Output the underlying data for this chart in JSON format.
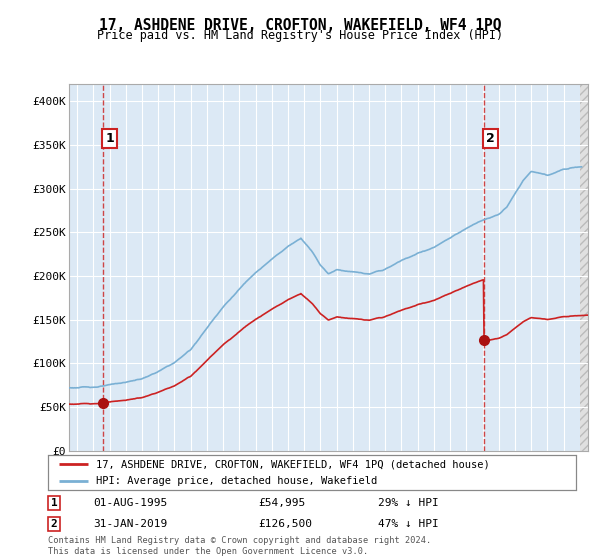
{
  "title": "17, ASHDENE DRIVE, CROFTON, WAKEFIELD, WF4 1PQ",
  "subtitle": "Price paid vs. HM Land Registry's House Price Index (HPI)",
  "sale1": {
    "date_num": 1995.58,
    "price": 54995,
    "label": "1",
    "date_str": "01-AUG-1995",
    "pct": "29% ↓ HPI"
  },
  "sale2": {
    "date_num": 2019.08,
    "price": 126500,
    "label": "2",
    "date_str": "31-JAN-2019",
    "pct": "47% ↓ HPI"
  },
  "hpi_line_color": "#7ab0d4",
  "sale_line_color": "#cc2222",
  "sale_dot_color": "#aa1111",
  "vline_color": "#cc3333",
  "legend_label_sale": "17, ASHDENE DRIVE, CROFTON, WAKEFIELD, WF4 1PQ (detached house)",
  "legend_label_hpi": "HPI: Average price, detached house, Wakefield",
  "footer": "Contains HM Land Registry data © Crown copyright and database right 2024.\nThis data is licensed under the Open Government Licence v3.0.",
  "ylim": [
    0,
    420000
  ],
  "xlim": [
    1993.5,
    2025.5
  ],
  "yticks": [
    0,
    50000,
    100000,
    150000,
    200000,
    250000,
    300000,
    350000,
    400000
  ],
  "ytick_labels": [
    "£0",
    "£50K",
    "£100K",
    "£150K",
    "£200K",
    "£250K",
    "£300K",
    "£350K",
    "£400K"
  ],
  "xticks": [
    1994,
    1995,
    1996,
    1997,
    1998,
    1999,
    2000,
    2001,
    2002,
    2003,
    2004,
    2005,
    2006,
    2007,
    2008,
    2009,
    2010,
    2011,
    2012,
    2013,
    2014,
    2015,
    2016,
    2017,
    2018,
    2019,
    2020,
    2021,
    2022,
    2023,
    2024
  ],
  "plot_bg_color": "#dce9f5",
  "hatch_bg_color": "#e8e8e8",
  "hatch_start": 2025.0
}
